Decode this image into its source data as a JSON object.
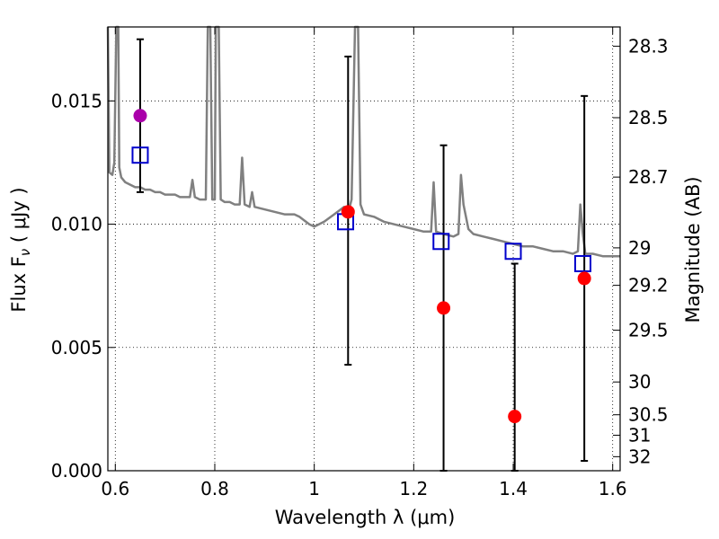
{
  "chart_data": {
    "type": "scatter",
    "xlabel": "Wavelength  λ (μm)",
    "ylabel": "Flux  F",
    "ylabel_sub": "ν",
    "ylabel_unit": "  ( μJy )",
    "y2label": "Magnitude (AB)",
    "xlim": [
      0.585,
      1.615
    ],
    "ylim": [
      0.0,
      0.018
    ],
    "grid": true,
    "x_ticks": [
      0.6,
      0.8,
      1.0,
      1.2,
      1.4,
      1.6
    ],
    "x_tick_labels": [
      "0.6",
      "0.8",
      "1",
      "1.2",
      "1.4",
      "1.6"
    ],
    "y_ticks": [
      0.0,
      0.005,
      0.01,
      0.015
    ],
    "y_tick_labels": [
      "0.000",
      "0.005",
      "0.010",
      "0.015"
    ],
    "y2_ticks": [
      {
        "label": "28.3",
        "flux": 0.01722
      },
      {
        "label": "28.5",
        "flux": 0.01432
      },
      {
        "label": "28.7",
        "flux": 0.01191
      },
      {
        "label": "29",
        "flux": 0.00904
      },
      {
        "label": "29.2",
        "flux": 0.00752
      },
      {
        "label": "29.5",
        "flux": 0.0057
      },
      {
        "label": "30",
        "flux": 0.0036
      },
      {
        "label": "30.5",
        "flux": 0.00227
      },
      {
        "label": "31",
        "flux": 0.00144
      },
      {
        "label": "32",
        "flux": 0.00057
      }
    ],
    "observed": [
      {
        "x": 0.65,
        "y": 0.0144,
        "err_low": 0.0113,
        "err_high": 0.0175,
        "color": "#aa00aa"
      },
      {
        "x": 1.068,
        "y": 0.0105,
        "err_low": 0.0043,
        "err_high": 0.0168,
        "color": "#ff0000"
      },
      {
        "x": 1.26,
        "y": 0.0066,
        "err_low": 0.0,
        "err_high": 0.0132,
        "color": "#ff0000"
      },
      {
        "x": 1.403,
        "y": 0.0022,
        "err_low": 0.0,
        "err_high": 0.0084,
        "color": "#ff0000"
      },
      {
        "x": 1.543,
        "y": 0.0078,
        "err_low": 0.0004,
        "err_high": 0.0152,
        "color": "#ff0000"
      }
    ],
    "model_bands": [
      {
        "x": 0.65,
        "y": 0.0128
      },
      {
        "x": 1.063,
        "y": 0.0101
      },
      {
        "x": 1.255,
        "y": 0.0093
      },
      {
        "x": 1.4,
        "y": 0.0089
      },
      {
        "x": 1.54,
        "y": 0.0084
      }
    ],
    "spectrum": [
      [
        0.585,
        0.018
      ],
      [
        0.588,
        0.0121
      ],
      [
        0.594,
        0.012
      ],
      [
        0.598,
        0.0125
      ],
      [
        0.602,
        0.018
      ],
      [
        0.606,
        0.018
      ],
      [
        0.608,
        0.0123
      ],
      [
        0.612,
        0.0119
      ],
      [
        0.62,
        0.0117
      ],
      [
        0.63,
        0.0116
      ],
      [
        0.64,
        0.0115
      ],
      [
        0.65,
        0.0115
      ],
      [
        0.66,
        0.0114
      ],
      [
        0.67,
        0.0114
      ],
      [
        0.68,
        0.0113
      ],
      [
        0.69,
        0.0113
      ],
      [
        0.7,
        0.0112
      ],
      [
        0.71,
        0.0112
      ],
      [
        0.72,
        0.0112
      ],
      [
        0.73,
        0.0111
      ],
      [
        0.74,
        0.0111
      ],
      [
        0.75,
        0.0111
      ],
      [
        0.755,
        0.0118
      ],
      [
        0.76,
        0.0111
      ],
      [
        0.77,
        0.011
      ],
      [
        0.782,
        0.011
      ],
      [
        0.786,
        0.018
      ],
      [
        0.791,
        0.018
      ],
      [
        0.795,
        0.011
      ],
      [
        0.8,
        0.011
      ],
      [
        0.802,
        0.018
      ],
      [
        0.808,
        0.018
      ],
      [
        0.812,
        0.011
      ],
      [
        0.82,
        0.0109
      ],
      [
        0.83,
        0.0109
      ],
      [
        0.84,
        0.0108
      ],
      [
        0.85,
        0.0108
      ],
      [
        0.855,
        0.0127
      ],
      [
        0.86,
        0.0108
      ],
      [
        0.87,
        0.0107
      ],
      [
        0.875,
        0.0113
      ],
      [
        0.88,
        0.0107
      ],
      [
        0.9,
        0.0106
      ],
      [
        0.92,
        0.0105
      ],
      [
        0.94,
        0.0104
      ],
      [
        0.96,
        0.0104
      ],
      [
        0.97,
        0.0103
      ],
      [
        0.99,
        0.01
      ],
      [
        1.0,
        0.0099
      ],
      [
        1.02,
        0.0101
      ],
      [
        1.04,
        0.0104
      ],
      [
        1.06,
        0.0107
      ],
      [
        1.07,
        0.0106
      ],
      [
        1.075,
        0.011
      ],
      [
        1.082,
        0.018
      ],
      [
        1.088,
        0.018
      ],
      [
        1.093,
        0.0108
      ],
      [
        1.1,
        0.0104
      ],
      [
        1.12,
        0.0103
      ],
      [
        1.14,
        0.0101
      ],
      [
        1.16,
        0.01
      ],
      [
        1.18,
        0.0099
      ],
      [
        1.2,
        0.0098
      ],
      [
        1.22,
        0.0097
      ],
      [
        1.235,
        0.0097
      ],
      [
        1.24,
        0.0117
      ],
      [
        1.245,
        0.0097
      ],
      [
        1.26,
        0.0096
      ],
      [
        1.28,
        0.0095
      ],
      [
        1.29,
        0.0096
      ],
      [
        1.295,
        0.012
      ],
      [
        1.3,
        0.0108
      ],
      [
        1.31,
        0.0098
      ],
      [
        1.32,
        0.0096
      ],
      [
        1.34,
        0.0095
      ],
      [
        1.36,
        0.0094
      ],
      [
        1.38,
        0.0093
      ],
      [
        1.4,
        0.0092
      ],
      [
        1.42,
        0.0091
      ],
      [
        1.44,
        0.0091
      ],
      [
        1.46,
        0.009
      ],
      [
        1.48,
        0.0089
      ],
      [
        1.5,
        0.0089
      ],
      [
        1.52,
        0.0088
      ],
      [
        1.53,
        0.0089
      ],
      [
        1.535,
        0.0108
      ],
      [
        1.54,
        0.0096
      ],
      [
        1.545,
        0.0088
      ],
      [
        1.56,
        0.0088
      ],
      [
        1.58,
        0.0087
      ],
      [
        1.6,
        0.0087
      ],
      [
        1.615,
        0.0087
      ]
    ]
  }
}
